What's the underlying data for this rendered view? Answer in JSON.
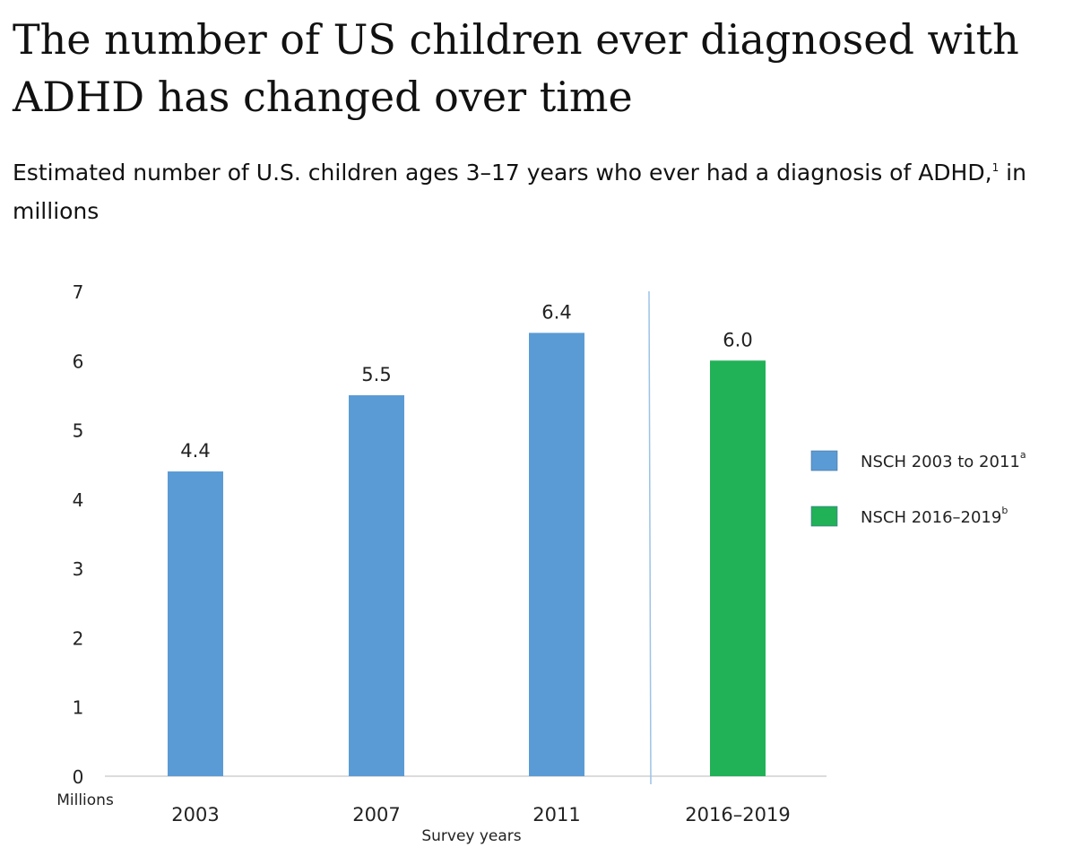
{
  "title": "The number of US children ever diagnosed with ADHD has changed over time",
  "subtitle": {
    "text": "Estimated number of U.S. children ages 3–17 years who ever had a diagnosis of ADHD,",
    "footnote": "1",
    "tail": " in millions"
  },
  "chart_data": {
    "type": "bar",
    "categories": [
      "2003",
      "2007",
      "2011",
      "2016–2019"
    ],
    "values": [
      4.4,
      5.5,
      6.4,
      6.0
    ],
    "value_labels": [
      "4.4",
      "5.5",
      "6.4",
      "6.0"
    ],
    "series_index": [
      0,
      0,
      0,
      1
    ],
    "series": [
      {
        "name": "NSCH 2003 to 2011",
        "footnote": "a",
        "color": "#5b9bd5"
      },
      {
        "name": "NSCH 2016–2019",
        "footnote": "b",
        "color": "#21b157"
      }
    ],
    "xlabel": "Survey years",
    "ylabel": "Millions",
    "ylim": [
      0,
      7
    ],
    "yticks": [
      "0",
      "1",
      "2",
      "3",
      "4",
      "5",
      "6",
      "7"
    ],
    "grid": false,
    "legend": "right",
    "separator_between": [
      "2011",
      "2016–2019"
    ]
  }
}
